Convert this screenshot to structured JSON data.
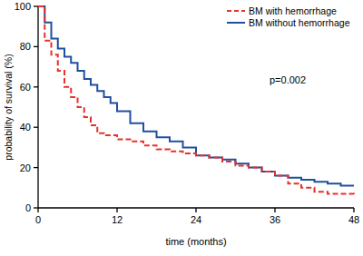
{
  "chart_data": {
    "type": "step",
    "x_label": "time (months)",
    "y_label": "probability of survival (%)",
    "annotation": "p=0.002",
    "x": [
      0,
      1,
      2,
      3,
      4,
      5,
      6,
      7,
      8,
      9,
      10,
      11,
      12,
      14,
      16,
      18,
      20,
      22,
      24,
      26,
      28,
      30,
      32,
      34,
      36,
      38,
      40,
      42,
      44,
      46,
      48
    ],
    "series": [
      {
        "name": "BM with hemorrhage",
        "color": "#e8312a",
        "line_style": "dashed",
        "values": [
          100,
          83,
          76,
          68,
          60,
          55,
          50,
          45,
          41,
          37,
          36,
          36,
          34,
          33,
          31,
          29,
          28,
          27,
          26,
          25,
          23,
          21,
          20,
          18,
          16,
          12,
          10,
          8,
          7,
          7,
          6
        ]
      },
      {
        "name": "BM without hemorrhage",
        "color": "#1f4fa0",
        "line_style": "solid",
        "values": [
          100,
          92,
          84,
          79,
          75,
          72,
          68,
          64,
          61,
          58,
          55,
          52,
          48,
          42,
          38,
          35,
          33,
          30,
          26,
          25,
          24,
          22,
          20,
          18,
          16,
          15,
          14,
          13,
          12,
          11,
          11
        ]
      }
    ],
    "xlim": [
      0,
      48
    ],
    "xticks": [
      0,
      12,
      24,
      36,
      48
    ],
    "ylim": [
      0,
      100
    ],
    "yticks": [
      0,
      20,
      40,
      60,
      80,
      100
    ],
    "legend": "top-right",
    "grid": false
  }
}
